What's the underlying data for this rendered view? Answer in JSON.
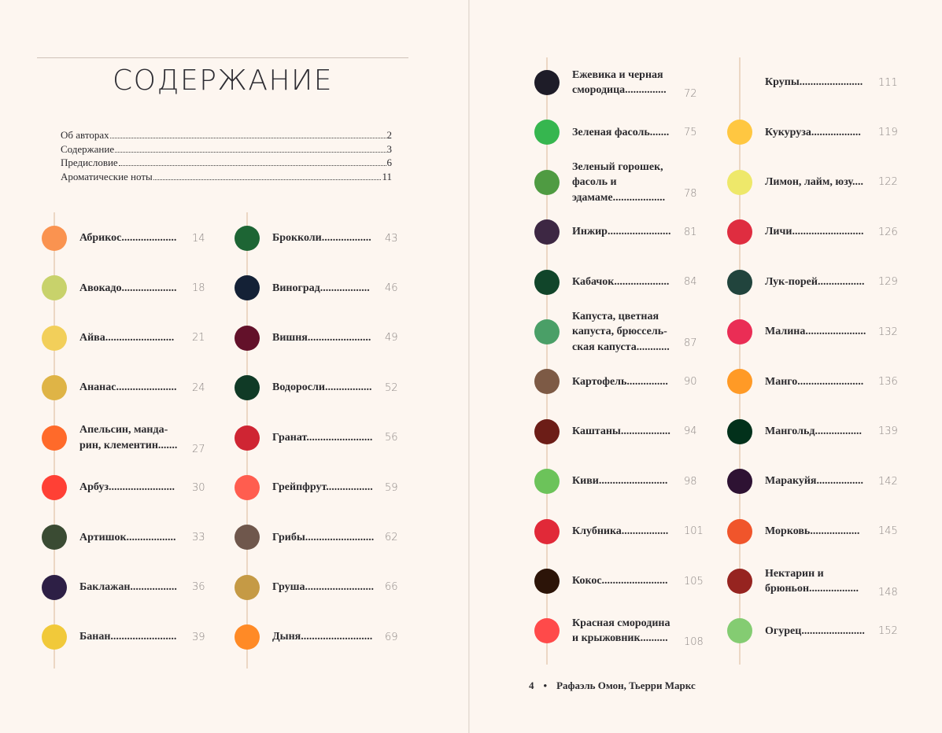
{
  "title": "СОДЕРЖАНИЕ",
  "front_matter": [
    {
      "label": "Об авторах",
      "page": "2"
    },
    {
      "label": "Содержание",
      "page": "3"
    },
    {
      "label": "Предисловие",
      "page": "6"
    },
    {
      "label": "Ароматические ноты",
      "page": "11"
    }
  ],
  "columns": [
    [
      {
        "label": "Абрикос....................",
        "page": "14",
        "color": "#fa9350"
      },
      {
        "label": "Авокадо....................",
        "page": "18",
        "color": "#c8d26b"
      },
      {
        "label": "Айва.........................",
        "page": "21",
        "color": "#f2cf5a"
      },
      {
        "label": "Ананас......................",
        "page": "24",
        "color": "#dfb446"
      },
      {
        "label": "Апельсин, манда-\nрин, клементин.......",
        "page": "27",
        "color": "#ff6a2a"
      },
      {
        "label": "Арбуз........................",
        "page": "30",
        "color": "#ff4035"
      },
      {
        "label": "Артишок..................",
        "page": "33",
        "color": "#3a4b33"
      },
      {
        "label": "Баклажан.................",
        "page": "36",
        "color": "#2d1f45"
      },
      {
        "label": "Банан........................",
        "page": "39",
        "color": "#f1c93a"
      }
    ],
    [
      {
        "label": "Брокколи..................",
        "page": "43",
        "color": "#1d6534"
      },
      {
        "label": "Виноград..................",
        "page": "46",
        "color": "#142136"
      },
      {
        "label": "Вишня.......................",
        "page": "49",
        "color": "#63112a"
      },
      {
        "label": "Водоросли.................",
        "page": "52",
        "color": "#103a26"
      },
      {
        "label": "Гранат........................",
        "page": "56",
        "color": "#cf2533"
      },
      {
        "label": "Грейпфрут.................",
        "page": "59",
        "color": "#ff5d4f"
      },
      {
        "label": "Грибы.........................",
        "page": "62",
        "color": "#6f574c"
      },
      {
        "label": "Груша.........................",
        "page": "66",
        "color": "#c59a45"
      },
      {
        "label": "Дыня..........................",
        "page": "69",
        "color": "#ff8a26"
      }
    ],
    [
      {
        "label": "Ежевика и черная\nсмородица...............",
        "page": "72",
        "color": "#1e1c28"
      },
      {
        "label": "Зеленая фасоль.......",
        "page": "75",
        "color": "#36b64f"
      },
      {
        "label": "Зеленый горошек,\nфасоль и\nэдамаме...................",
        "page": "78",
        "color": "#4f9b42"
      },
      {
        "label": "Инжир.......................",
        "page": "81",
        "color": "#3d2743"
      },
      {
        "label": "Кабачок....................",
        "page": "84",
        "color": "#11452a"
      },
      {
        "label": "Капуста, цветная\nкапуста, брюссель-\nская капуста............",
        "page": "87",
        "color": "#4a9f67"
      },
      {
        "label": "Картофель...............",
        "page": "90",
        "color": "#7d5a45"
      },
      {
        "label": "Каштаны..................",
        "page": "94",
        "color": "#6c1d17"
      },
      {
        "label": "Киви.........................",
        "page": "98",
        "color": "#6cc35a"
      },
      {
        "label": "Клубника.................",
        "page": "101",
        "color": "#e12938"
      },
      {
        "label": "Кокос........................",
        "page": "105",
        "color": "#2c1408"
      },
      {
        "label": "Красная смородина\nи крыжовник..........",
        "page": "108",
        "color": "#ff4a4a"
      }
    ],
    [
      {
        "label": "Крупы.......................",
        "page": "111",
        "color": ""
      },
      {
        "label": "Кукуруза..................",
        "page": "119",
        "color": "#ffc741"
      },
      {
        "label": "Лимон, лайм, юзу....",
        "page": "122",
        "color": "#eee86a"
      },
      {
        "label": "Личи..........................",
        "page": "126",
        "color": "#df2d40"
      },
      {
        "label": "Лук-порей.................",
        "page": "129",
        "color": "#21443d"
      },
      {
        "label": "Малина......................",
        "page": "132",
        "color": "#ea2d55"
      },
      {
        "label": "Манго........................",
        "page": "136",
        "color": "#ff9a26"
      },
      {
        "label": "Мангольд.................",
        "page": "139",
        "color": "#02311b"
      },
      {
        "label": "Маракуйя.................",
        "page": "142",
        "color": "#2e1233"
      },
      {
        "label": "Морковь..................",
        "page": "145",
        "color": "#f0552b"
      },
      {
        "label": "Нектарин и\nбрюньон..................",
        "page": "148",
        "color": "#962420"
      },
      {
        "label": "Огурец.......................",
        "page": "152",
        "color": "#84cc72"
      }
    ]
  ],
  "footer": {
    "page": "4",
    "bullet": "•",
    "authors": "Рафаэль Омон, Тьерри Маркс"
  }
}
